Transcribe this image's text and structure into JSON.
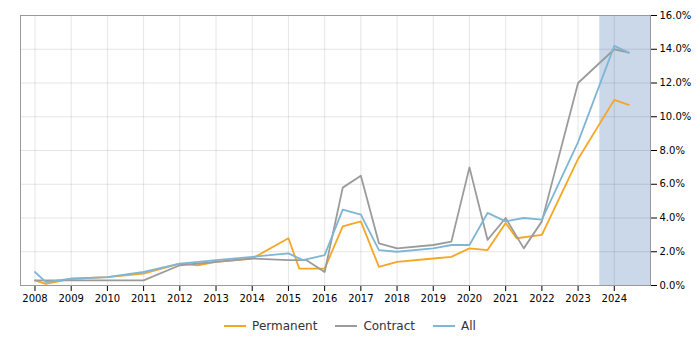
{
  "chart_data": {
    "type": "line",
    "series": [
      {
        "name": "Permanent",
        "color": "#f5a623",
        "x": [
          2008,
          2008.3,
          2009,
          2010,
          2011,
          2012,
          2012.5,
          2013,
          2014,
          2015,
          2015.3,
          2016,
          2016.5,
          2017,
          2017.5,
          2018,
          2019,
          2019.5,
          2020,
          2020.5,
          2021,
          2021.3,
          2022,
          2023,
          2024,
          2024.4
        ],
        "values": [
          0.3,
          0.1,
          0.4,
          0.5,
          0.7,
          1.3,
          1.2,
          1.4,
          1.6,
          2.8,
          1.0,
          1.0,
          3.5,
          3.8,
          1.1,
          1.4,
          1.6,
          1.7,
          2.2,
          2.1,
          3.7,
          2.8,
          3.0,
          7.5,
          11.0,
          10.7
        ]
      },
      {
        "name": "Contract",
        "color": "#9b9b9b",
        "x": [
          2008,
          2009,
          2010,
          2011,
          2012,
          2013,
          2014,
          2015,
          2015.5,
          2016,
          2016.5,
          2017,
          2017.5,
          2018,
          2019,
          2019.5,
          2020,
          2020.5,
          2021,
          2021.5,
          2022,
          2023,
          2024,
          2024.4
        ],
        "values": [
          0.3,
          0.3,
          0.3,
          0.3,
          1.2,
          1.4,
          1.6,
          1.5,
          1.5,
          0.8,
          5.8,
          6.5,
          2.5,
          2.2,
          2.4,
          2.6,
          7.0,
          2.7,
          4.0,
          2.2,
          3.8,
          12.0,
          14.0,
          13.8
        ]
      },
      {
        "name": "All",
        "color": "#7eb6d4",
        "x": [
          2008,
          2008.3,
          2009,
          2010,
          2011,
          2012,
          2013,
          2014,
          2015,
          2015.4,
          2016,
          2016.5,
          2017,
          2017.5,
          2018,
          2019,
          2019.5,
          2020,
          2020.5,
          2021,
          2021.5,
          2022,
          2023,
          2024,
          2024.4
        ],
        "values": [
          0.8,
          0.2,
          0.4,
          0.5,
          0.8,
          1.3,
          1.5,
          1.7,
          1.9,
          1.5,
          1.8,
          4.5,
          4.2,
          2.1,
          2.0,
          2.2,
          2.4,
          2.4,
          4.3,
          3.8,
          4.0,
          3.9,
          8.5,
          14.2,
          13.8
        ]
      }
    ],
    "shade": {
      "x": [
        2023.6,
        2025.0
      ],
      "color": "#cad8ea"
    },
    "xlim": [
      2007.6,
      2025.0
    ],
    "xticks": [
      2008,
      2009,
      2010,
      2011,
      2012,
      2013,
      2014,
      2015,
      2016,
      2017,
      2018,
      2019,
      2020,
      2021,
      2022,
      2023,
      2024
    ],
    "ylim": [
      0,
      16
    ],
    "yticks": [
      {
        "value": 0,
        "label": "0.0%"
      },
      {
        "value": 2,
        "label": "2.0%"
      },
      {
        "value": 4,
        "label": "4.0%"
      },
      {
        "value": 6,
        "label": "6.0%"
      },
      {
        "value": 8,
        "label": "8.0%"
      },
      {
        "value": 10,
        "label": "10.0%"
      },
      {
        "value": 12,
        "label": "12.0%"
      },
      {
        "value": 14,
        "label": "14.0%"
      },
      {
        "value": 16,
        "label": "16.0%"
      }
    ],
    "grid": true,
    "legend": "bottom"
  }
}
